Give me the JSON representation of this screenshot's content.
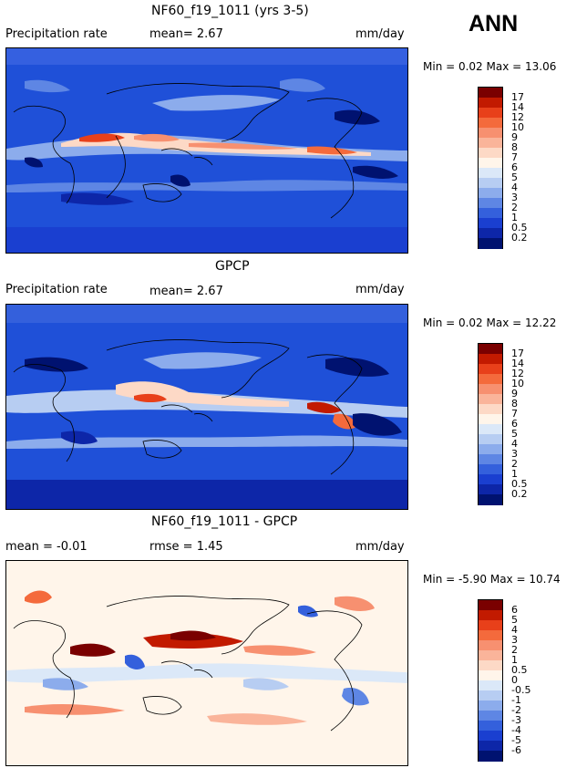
{
  "season": "ANN",
  "panels": [
    {
      "title": "NF60_f19_1011 (yrs 3-5)",
      "left_label": "Precipitation rate",
      "stat_text": "mean=   2.67",
      "units": "mm/day",
      "minmax": "Min =    0.02  Max =   13.06",
      "colorbar_labels": [
        "17",
        "14",
        "12",
        "10",
        "9",
        "8",
        "7",
        "6",
        "5",
        "4",
        "3",
        "2",
        "1",
        "0.5",
        "0.2"
      ],
      "colors": [
        "#7a0000",
        "#c21a00",
        "#e8401a",
        "#f46a3c",
        "#f79070",
        "#fab49a",
        "#fdd9c6",
        "#fff5ea",
        "#dbe8f8",
        "#b7cdf2",
        "#8cacec",
        "#5e86e4",
        "#3460dc",
        "#1a3fd0",
        "#0d26a8",
        "#001270"
      ]
    },
    {
      "title": "GPCP",
      "left_label": "Precipitation rate",
      "stat_text": "mean=    2.67",
      "units": "mm/day",
      "minmax": "Min =    0.02  Max =   12.22",
      "colorbar_labels": [
        "17",
        "14",
        "12",
        "10",
        "9",
        "8",
        "7",
        "6",
        "5",
        "4",
        "3",
        "2",
        "1",
        "0.5",
        "0.2"
      ],
      "colors": [
        "#7a0000",
        "#c21a00",
        "#e8401a",
        "#f46a3c",
        "#f79070",
        "#fab49a",
        "#fdd9c6",
        "#fff5ea",
        "#dbe8f8",
        "#b7cdf2",
        "#8cacec",
        "#5e86e4",
        "#3460dc",
        "#1a3fd0",
        "#0d26a8",
        "#001270"
      ]
    },
    {
      "title": "NF60_f19_1011 - GPCP",
      "left_label": "mean =   -0.01",
      "stat_text": "rmse =    1.45",
      "units": "mm/day",
      "minmax": "Min =  -5.90  Max =   10.74",
      "colorbar_labels": [
        "6",
        "5",
        "4",
        "3",
        "2",
        "1",
        "0.5",
        "0",
        "-0.5",
        "-1",
        "-2",
        "-3",
        "-4",
        "-5",
        "-6"
      ],
      "colors": [
        "#7a0000",
        "#c21a00",
        "#e8401a",
        "#f46a3c",
        "#f79070",
        "#fab49a",
        "#fdd9c6",
        "#fff5ea",
        "#dbe8f8",
        "#b7cdf2",
        "#8cacec",
        "#5e86e4",
        "#3460dc",
        "#1a3fd0",
        "#0d26a8",
        "#001270"
      ]
    }
  ]
}
